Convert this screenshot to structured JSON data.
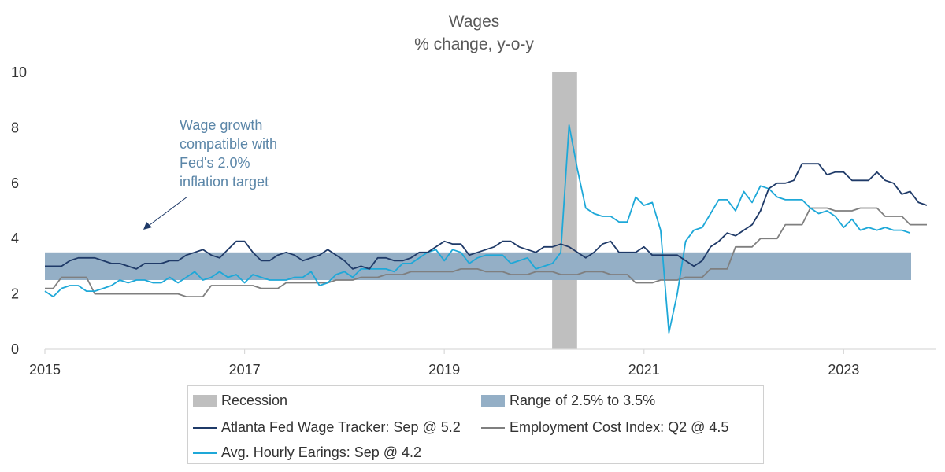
{
  "chart_data": {
    "type": "line",
    "title": "Wages",
    "subtitle": "% change, y-o-y",
    "xlabel": "",
    "ylabel": "",
    "xlim": [
      2015.0,
      2023.92
    ],
    "ylim": [
      0,
      10
    ],
    "x_ticks": [
      "2015",
      "2017",
      "2019",
      "2021",
      "2023"
    ],
    "y_ticks": [
      "0",
      "2",
      "4",
      "6",
      "8",
      "10"
    ],
    "grid": false,
    "legend_position": "bottom",
    "annotation": [
      "Wage growth",
      "compatible with",
      "Fed's 2.0%",
      "inflation target"
    ],
    "bands": [
      {
        "name": "Recession",
        "axis": "x",
        "from": 2020.08,
        "to": 2020.33,
        "color": "#bfbfbf"
      },
      {
        "name": "Range of 2.5% to 3.5%",
        "axis": "y",
        "from": 2.5,
        "to": 3.5,
        "color": "#94afc6"
      }
    ],
    "series": [
      {
        "name": "Atlanta Fed Wage Tracker: Sep @ 5.2",
        "color": "#1f3a68",
        "start": 2015.0,
        "step": 0.08333,
        "values": [
          3.0,
          3.0,
          3.0,
          3.2,
          3.3,
          3.3,
          3.3,
          3.2,
          3.1,
          3.1,
          3.0,
          2.9,
          3.1,
          3.1,
          3.1,
          3.2,
          3.2,
          3.4,
          3.5,
          3.6,
          3.4,
          3.3,
          3.6,
          3.9,
          3.9,
          3.5,
          3.2,
          3.2,
          3.4,
          3.5,
          3.4,
          3.2,
          3.3,
          3.4,
          3.6,
          3.4,
          3.2,
          2.9,
          3.0,
          2.9,
          3.3,
          3.3,
          3.2,
          3.2,
          3.3,
          3.5,
          3.5,
          3.7,
          3.9,
          3.8,
          3.8,
          3.4,
          3.5,
          3.6,
          3.7,
          3.9,
          3.9,
          3.7,
          3.6,
          3.5,
          3.7,
          3.7,
          3.8,
          3.7,
          3.5,
          3.3,
          3.5,
          3.8,
          3.9,
          3.5,
          3.5,
          3.5,
          3.7,
          3.4,
          3.4,
          3.4,
          3.4,
          3.2,
          3.0,
          3.2,
          3.7,
          3.9,
          4.2,
          4.1,
          4.3,
          4.5,
          5.0,
          5.8,
          6.0,
          6.0,
          6.1,
          6.7,
          6.7,
          6.7,
          6.3,
          6.4,
          6.4,
          6.1,
          6.1,
          6.1,
          6.4,
          6.1,
          6.0,
          5.6,
          5.7,
          5.3,
          5.2
        ]
      },
      {
        "name": "Employment Cost Index: Q2 @ 4.5",
        "color": "#7f7f7f",
        "start": 2015.0,
        "step": 0.08333,
        "values": [
          2.2,
          2.2,
          2.6,
          2.6,
          2.6,
          2.6,
          2.0,
          2.0,
          2.0,
          2.0,
          2.0,
          2.0,
          2.0,
          2.0,
          2.0,
          2.0,
          2.0,
          1.9,
          1.9,
          1.9,
          2.3,
          2.3,
          2.3,
          2.3,
          2.3,
          2.3,
          2.2,
          2.2,
          2.2,
          2.4,
          2.4,
          2.4,
          2.4,
          2.4,
          2.4,
          2.5,
          2.5,
          2.5,
          2.6,
          2.6,
          2.6,
          2.7,
          2.7,
          2.7,
          2.8,
          2.8,
          2.8,
          2.8,
          2.8,
          2.8,
          2.9,
          2.9,
          2.9,
          2.8,
          2.8,
          2.8,
          2.7,
          2.7,
          2.7,
          2.8,
          2.8,
          2.8,
          2.7,
          2.7,
          2.7,
          2.8,
          2.8,
          2.8,
          2.7,
          2.7,
          2.7,
          2.4,
          2.4,
          2.4,
          2.5,
          2.5,
          2.5,
          2.6,
          2.6,
          2.6,
          2.9,
          2.9,
          2.9,
          3.7,
          3.7,
          3.7,
          4.0,
          4.0,
          4.0,
          4.5,
          4.5,
          4.5,
          5.1,
          5.1,
          5.1,
          5.0,
          5.0,
          5.0,
          5.1,
          5.1,
          5.1,
          4.8,
          4.8,
          4.8,
          4.5,
          4.5,
          4.5
        ]
      },
      {
        "name": "Avg. Hourly Earings: Sep @ 4.2",
        "color": "#1ea8d8",
        "start": 2015.0,
        "step": 0.08333,
        "values": [
          2.1,
          1.9,
          2.2,
          2.3,
          2.3,
          2.1,
          2.1,
          2.2,
          2.3,
          2.5,
          2.4,
          2.5,
          2.5,
          2.4,
          2.4,
          2.6,
          2.4,
          2.6,
          2.8,
          2.5,
          2.6,
          2.8,
          2.6,
          2.7,
          2.4,
          2.7,
          2.6,
          2.5,
          2.5,
          2.5,
          2.6,
          2.6,
          2.8,
          2.3,
          2.4,
          2.7,
          2.8,
          2.6,
          2.9,
          2.9,
          2.9,
          2.9,
          2.8,
          3.1,
          3.1,
          3.3,
          3.5,
          3.6,
          3.2,
          3.6,
          3.5,
          3.1,
          3.3,
          3.4,
          3.4,
          3.4,
          3.1,
          3.2,
          3.3,
          2.9,
          3.0,
          3.1,
          3.5,
          8.1,
          6.5,
          5.1,
          4.9,
          4.8,
          4.8,
          4.6,
          4.6,
          5.5,
          5.2,
          5.3,
          4.3,
          0.6,
          2.0,
          3.9,
          4.3,
          4.4,
          4.9,
          5.4,
          5.4,
          5.0,
          5.7,
          5.3,
          5.9,
          5.8,
          5.5,
          5.4,
          5.4,
          5.4,
          5.1,
          4.9,
          5.0,
          4.8,
          4.4,
          4.7,
          4.3,
          4.4,
          4.3,
          4.4,
          4.3,
          4.3,
          4.2
        ]
      }
    ]
  }
}
